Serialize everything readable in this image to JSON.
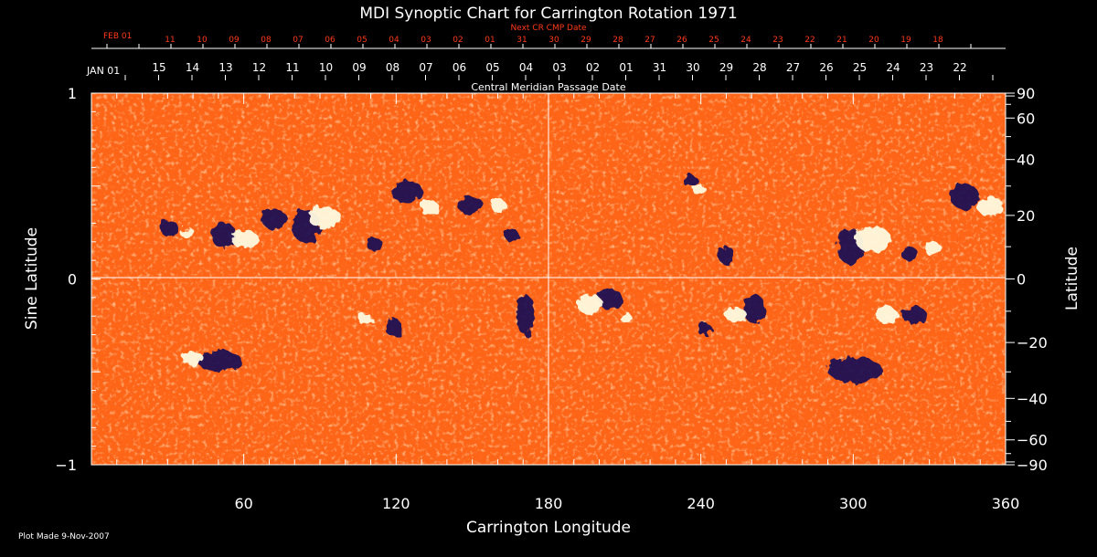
{
  "chart_data": {
    "type": "heatmap",
    "title": "MDI Synoptic Chart for Carrington Rotation 1971",
    "xlabel": "Carrington Longitude",
    "ylabel_left": "Sine Latitude",
    "ylabel_right": "Latitude",
    "xlim": [
      0,
      360
    ],
    "ylim": [
      -1,
      1
    ],
    "x_ticks": [
      "60",
      "120",
      "180",
      "240",
      "300",
      "360"
    ],
    "y_ticks_left": [
      {
        "v": 1,
        "label": "1"
      },
      {
        "v": 0,
        "label": "0"
      },
      {
        "v": -1,
        "label": "−1"
      }
    ],
    "y_ticks_right": [
      {
        "deg": 90,
        "label": "90"
      },
      {
        "deg": 60,
        "label": "60"
      },
      {
        "deg": 40,
        "label": "40"
      },
      {
        "deg": 20,
        "label": "20"
      },
      {
        "deg": 0,
        "label": "0"
      },
      {
        "deg": -20,
        "label": "−20"
      },
      {
        "deg": -40,
        "label": "−40"
      },
      {
        "deg": -60,
        "label": "−60"
      },
      {
        "deg": -90,
        "label": "−90"
      }
    ],
    "cmp_axis_label": "Central Meridian Passage Date",
    "cmp_month_label": "JAN 01",
    "cmp_dates": [
      "15",
      "14",
      "13",
      "12",
      "11",
      "10",
      "09",
      "08",
      "07",
      "06",
      "05",
      "04",
      "03",
      "02",
      "01",
      "31",
      "30",
      "29",
      "28",
      "27",
      "26",
      "25",
      "24",
      "23",
      "22"
    ],
    "next_cr_label": "Next CR CMP Date",
    "next_cr_month_label": "FEB 01",
    "next_cr_dates": [
      "11",
      "10",
      "09",
      "08",
      "07",
      "06",
      "05",
      "04",
      "03",
      "02",
      "01",
      "31",
      "30",
      "29",
      "28",
      "27",
      "26",
      "25",
      "24",
      "23",
      "22",
      "21",
      "20",
      "19",
      "18"
    ],
    "plot_made": "Plot Made  9-Nov-2007",
    "grid": true
  },
  "colors": {
    "background": "#000000",
    "field_base": "#ff5a14",
    "positive_polarity": "#fffae0",
    "negative_polarity": "#1a0a55",
    "text": "#ffffff",
    "next_cr_text": "#ff3a1a"
  }
}
